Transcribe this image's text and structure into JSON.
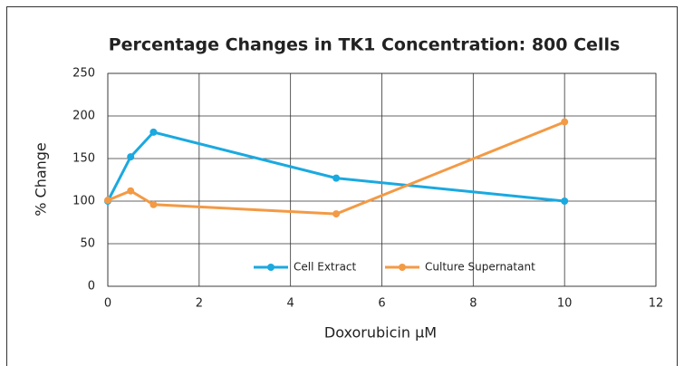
{
  "chart_data": {
    "type": "line",
    "title": "Percentage Changes in TK1 Concentration: 800 Cells",
    "xlabel": "Doxorubicin µM",
    "ylabel": "% Change",
    "x": [
      0,
      0.5,
      1,
      5,
      10
    ],
    "series": [
      {
        "name": "Cell Extract",
        "color": "#1aa9e0",
        "values": [
          100,
          152,
          181,
          127,
          100
        ]
      },
      {
        "name": "Culture Supernatant",
        "color": "#f39a45",
        "values": [
          101,
          112,
          96,
          85,
          193
        ]
      }
    ],
    "xlim": [
      0,
      12
    ],
    "xticks": [
      0,
      2,
      4,
      6,
      8,
      10,
      12
    ],
    "ylim": [
      0,
      250
    ],
    "yticks": [
      0,
      50,
      100,
      150,
      200,
      250
    ],
    "grid": true,
    "legend": "bottom"
  }
}
